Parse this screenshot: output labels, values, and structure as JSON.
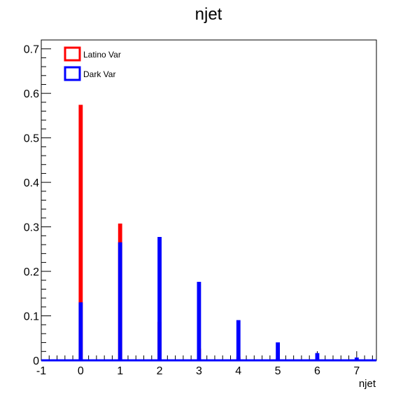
{
  "chart_data": {
    "type": "histogram",
    "title": "njet",
    "xlabel": "njet",
    "ylabel": "",
    "xlim": [
      -1,
      7.5
    ],
    "ylim": [
      0,
      0.72
    ],
    "xticks": [
      "-1",
      "0",
      "1",
      "2",
      "3",
      "4",
      "5",
      "6",
      "7"
    ],
    "yticks": [
      "0",
      "0.1",
      "0.2",
      "0.3",
      "0.4",
      "0.5",
      "0.6",
      "0.7"
    ],
    "x": [
      0,
      1,
      2,
      3,
      4,
      5,
      6,
      7
    ],
    "series": [
      {
        "name": "Latino Var",
        "color": "#ff0000",
        "values": [
          0.572,
          0.305,
          0.084,
          0.024,
          0.006,
          0.002,
          0.0,
          0.0
        ]
      },
      {
        "name": "Dark Var",
        "color": "#0000ff",
        "values": [
          0.128,
          0.263,
          0.275,
          0.174,
          0.088,
          0.038,
          0.014,
          0.004
        ]
      }
    ],
    "legend_position": "top-left",
    "grid": false
  }
}
